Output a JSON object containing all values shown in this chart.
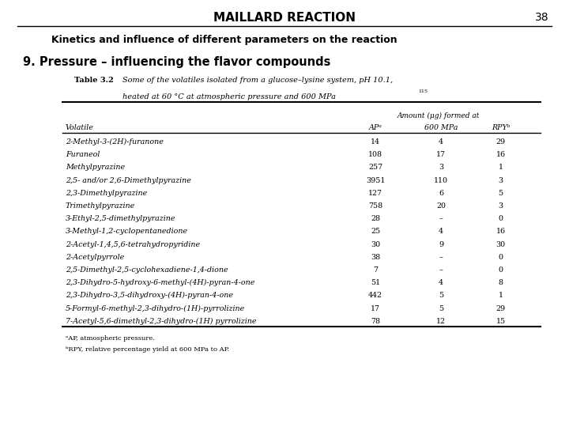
{
  "title": "MAILLARD REACTION",
  "page_num": "38",
  "subtitle": "Kinetics and influence of different parameters on the reaction",
  "section_title": "9. Pressure – influencing the flavor compounds",
  "table_caption_bold": "Table 3.2",
  "table_caption_italic": "Some of the volatiles isolated from a glucose–lysine system, pH 10.1,",
  "table_caption_italic2": "heated at 60 °C at atmospheric pressure and 600 MPa",
  "table_caption_superscript": "115",
  "col_header_span": "Amount (μg) formed at",
  "col1_header": "Volatile",
  "col2_header": "APᵃ",
  "col3_header": "600 MPa",
  "col4_header": "RPYᵇ",
  "rows": [
    [
      "2-Methyl-3-(2H)-furanone",
      "14",
      "4",
      "29"
    ],
    [
      "Furaneol",
      "108",
      "17",
      "16"
    ],
    [
      "Methylpyrazine",
      "257",
      "3",
      "1"
    ],
    [
      "2,5- and/or 2,6-Dimethylpyrazine",
      "3951",
      "110",
      "3"
    ],
    [
      "2,3-Dimethylpyrazine",
      "127",
      "6",
      "5"
    ],
    [
      "Trimethylpyrazine",
      "758",
      "20",
      "3"
    ],
    [
      "3-Ethyl-2,5-dimethylpyrazine",
      "28",
      "–",
      "0"
    ],
    [
      "3-Methyl-1,2-cyclopentanedione",
      "25",
      "4",
      "16"
    ],
    [
      "2-Acetyl-1,4,5,6-tetrahydropyridine",
      "30",
      "9",
      "30"
    ],
    [
      "2-Acetylpyrrole",
      "38",
      "–",
      "0"
    ],
    [
      "2,5-Dimethyl-2,5-cyclohexadiene-1,4-dione",
      "7",
      "–",
      "0"
    ],
    [
      "2,3-Dihydro-5-hydroxy-6-methyl-(4H)-pyran-4-one",
      "51",
      "4",
      "8"
    ],
    [
      "2,3-Dihydro-3,5-dihydroxy-(4H)-pyran-4-one",
      "442",
      "5",
      "1"
    ],
    [
      "5-Formyl-6-methyl-2,3-dihydro-(1H)-pyrrolizine",
      "17",
      "5",
      "29"
    ],
    [
      "7-Acetyl-5,6-dimethyl-2,3-dihydro-(1H) pyrrolizine",
      "78",
      "12",
      "15"
    ]
  ],
  "footnote1": "ᵃAP, atmospheric pressure.",
  "footnote2": "ᵇRPY, relative percentage yield at 600 MPa to AP.",
  "background_color": "#ffffff",
  "title_fontsize": 11,
  "pagenum_fontsize": 10,
  "subtitle_fontsize": 9,
  "section_fontsize": 10.5,
  "caption_fontsize": 7,
  "table_fontsize": 6.8,
  "footnote_fontsize": 6
}
